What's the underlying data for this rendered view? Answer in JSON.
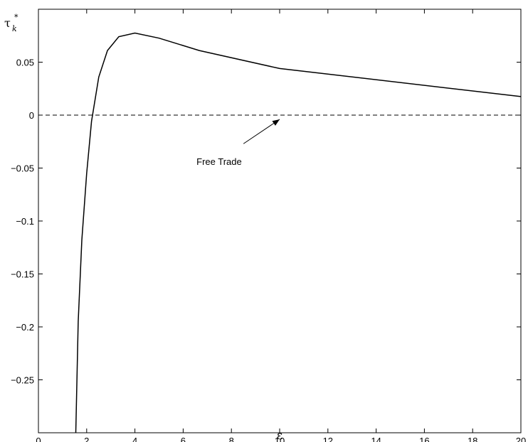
{
  "chart_data": {
    "type": "line",
    "title": "",
    "xlabel": "ε",
    "ylabel": "τ",
    "ylabel_subscript": "k",
    "ylabel_superscript": "*",
    "xlim": [
      0,
      20
    ],
    "ylim": [
      -0.3,
      0.1
    ],
    "grid": false,
    "xticks": [
      0,
      2,
      4,
      6,
      8,
      10,
      12,
      14,
      16,
      18,
      20
    ],
    "yticks": [
      -0.25,
      -0.2,
      -0.15,
      -0.1,
      -0.05,
      0,
      0.05
    ],
    "ytick_labels": [
      "−0.25",
      "−0.2",
      "−0.15",
      "−0.1",
      "−0.05",
      "0",
      "0.05"
    ],
    "series": [
      {
        "x": [
          1.55,
          1.65,
          1.8,
          2.0,
          2.2,
          2.5,
          2.86,
          3.33,
          4.0,
          5.0,
          6.67,
          10.0,
          20.0
        ],
        "y": [
          -0.3,
          -0.195,
          -0.118,
          -0.055,
          -0.006,
          0.036,
          0.061,
          0.074,
          0.0775,
          0.0727,
          0.061,
          0.044,
          0.0175
        ],
        "style": "solid",
        "color": "#000000"
      },
      {
        "x": [
          0,
          20
        ],
        "y": [
          0,
          0
        ],
        "style": "dashed",
        "color": "#000000"
      }
    ],
    "annotations": [
      {
        "text": "Free Trade",
        "arrow_from": [
          8.5,
          -0.027
        ],
        "arrow_to": [
          10.0,
          -0.004
        ]
      }
    ]
  }
}
